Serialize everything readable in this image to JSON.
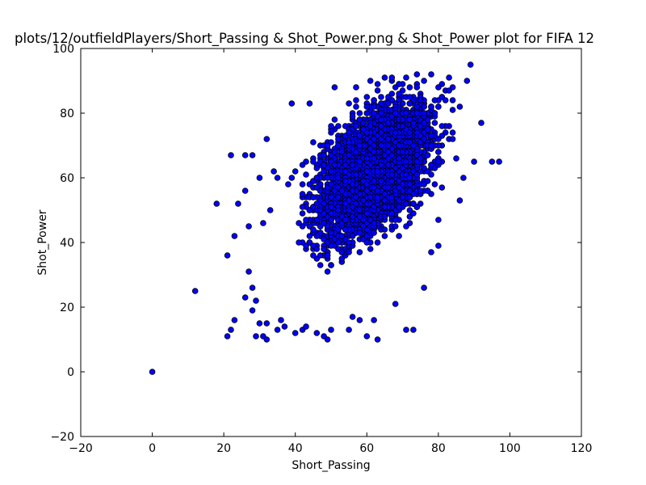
{
  "chart_data": {
    "type": "scatter",
    "title": "plots/12/outfieldPlayers/Short_Passing & Shot_Power.png & Shot_Power plot for FIFA 12",
    "xlabel": "Short_Passing",
    "ylabel": "Shot_Power",
    "xlim": [
      -20,
      120
    ],
    "ylim": [
      -20,
      100
    ],
    "xticks": [
      "−20",
      "0",
      "20",
      "40",
      "60",
      "80",
      "100",
      "120"
    ],
    "yticks": [
      "−20",
      "0",
      "20",
      "40",
      "60",
      "80",
      "100"
    ],
    "grid": false,
    "marker_color": "#0000ff",
    "marker_edge_color": "#000000",
    "outlier_points": [
      [
        0,
        0
      ],
      [
        12,
        25
      ],
      [
        18,
        52
      ],
      [
        21,
        11
      ],
      [
        21,
        36
      ],
      [
        22,
        13
      ],
      [
        22,
        67
      ],
      [
        23,
        16
      ],
      [
        23,
        42
      ],
      [
        24,
        52
      ],
      [
        26,
        23
      ],
      [
        26,
        56
      ],
      [
        26,
        67
      ],
      [
        27,
        31
      ],
      [
        27,
        45
      ],
      [
        28,
        19
      ],
      [
        28,
        26
      ],
      [
        28,
        67
      ],
      [
        29,
        11
      ],
      [
        29,
        22
      ],
      [
        30,
        15
      ],
      [
        30,
        60
      ],
      [
        31,
        11
      ],
      [
        31,
        46
      ],
      [
        32,
        10
      ],
      [
        32,
        15
      ],
      [
        32,
        72
      ],
      [
        33,
        50
      ],
      [
        34,
        62
      ],
      [
        35,
        13
      ],
      [
        36,
        16
      ],
      [
        37,
        14
      ],
      [
        39,
        83
      ],
      [
        40,
        12
      ],
      [
        42,
        13
      ],
      [
        43,
        14
      ],
      [
        44,
        83
      ],
      [
        46,
        12
      ],
      [
        48,
        11
      ],
      [
        49,
        10
      ],
      [
        50,
        13
      ],
      [
        51,
        88
      ],
      [
        55,
        13
      ],
      [
        56,
        17
      ],
      [
        57,
        88
      ],
      [
        58,
        16
      ],
      [
        60,
        11
      ],
      [
        61,
        90
      ],
      [
        62,
        16
      ],
      [
        63,
        10
      ],
      [
        65,
        91
      ],
      [
        67,
        91
      ],
      [
        68,
        21
      ],
      [
        71,
        13
      ],
      [
        73,
        13
      ],
      [
        76,
        26
      ],
      [
        78,
        37
      ],
      [
        80,
        39
      ],
      [
        83,
        91
      ],
      [
        84,
        88
      ],
      [
        86,
        53
      ],
      [
        87,
        60
      ],
      [
        88,
        90
      ],
      [
        89,
        95
      ],
      [
        90,
        65
      ],
      [
        92,
        77
      ],
      [
        95,
        65
      ],
      [
        97,
        65
      ]
    ],
    "cluster_points": [
      [
        35,
        60
      ],
      [
        38,
        58
      ],
      [
        40,
        62
      ],
      [
        42,
        55
      ],
      [
        44,
        58
      ],
      [
        46,
        60
      ],
      [
        48,
        62
      ],
      [
        50,
        58
      ],
      [
        52,
        60
      ],
      [
        54,
        62
      ],
      [
        56,
        64
      ],
      [
        58,
        65
      ],
      [
        60,
        66
      ],
      [
        62,
        68
      ],
      [
        64,
        70
      ],
      [
        66,
        72
      ],
      [
        68,
        74
      ],
      [
        70,
        76
      ],
      [
        72,
        78
      ],
      [
        74,
        80
      ],
      [
        76,
        80
      ],
      [
        78,
        82
      ],
      [
        80,
        82
      ],
      [
        82,
        84
      ],
      [
        84,
        84
      ],
      [
        86,
        82
      ]
    ],
    "cluster_description_note": null,
    "dense_region": {
      "x_min": 30,
      "x_max": 90,
      "y_trend": {
        "intercept": 22,
        "slope": 0.65
      },
      "y_spread": 17
    }
  }
}
